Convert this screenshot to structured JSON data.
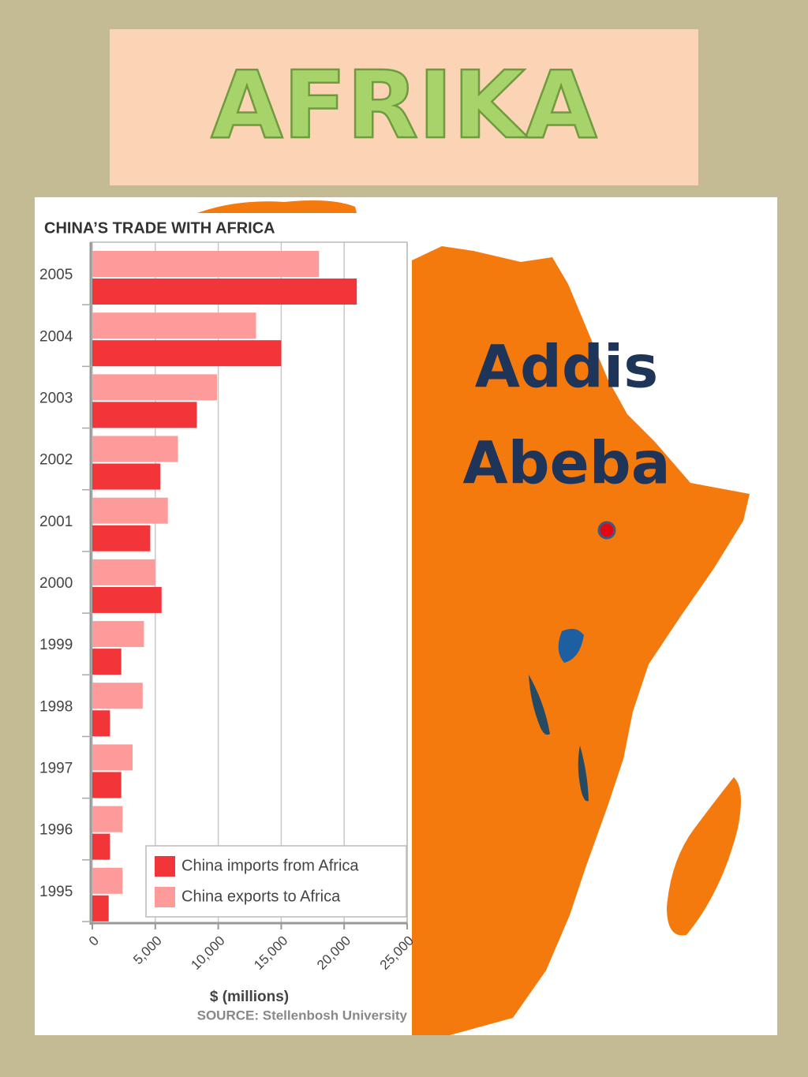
{
  "header": {
    "title": "AFRIKA"
  },
  "map": {
    "label": [
      "Addis",
      "Abeba"
    ]
  },
  "chart_data": {
    "type": "hbar",
    "title": "CHINA’S TRADE WITH AFRICA",
    "x_label": "$ (millions)",
    "source": "SOURCE: Stellenbosh University",
    "categories": [
      "2005",
      "2004",
      "2003",
      "2002",
      "2001",
      "2000",
      "1999",
      "1998",
      "1997",
      "1996",
      "1995"
    ],
    "series": [
      {
        "name": "China imports from Africa",
        "color": "#f23538",
        "values": [
          21000,
          15000,
          8300,
          5400,
          4600,
          5500,
          2300,
          1400,
          2300,
          1400,
          1300
        ]
      },
      {
        "name": "China exports to Africa",
        "color": "#fd9a9a",
        "values": [
          18000,
          13000,
          9900,
          6800,
          6000,
          5000,
          4100,
          4000,
          3200,
          2400,
          2400
        ]
      }
    ],
    "xlim": [
      0,
      25000
    ],
    "xticks": [
      0,
      {
        "value": 5000,
        "label": "5,000"
      },
      {
        "value": 10000,
        "label": "10,000"
      },
      {
        "value": 15000,
        "label": "15,000"
      },
      {
        "value": 20000,
        "label": "20,000"
      },
      {
        "value": 25000,
        "label": "25,000"
      }
    ],
    "grid": true,
    "legend": "lower-right"
  }
}
